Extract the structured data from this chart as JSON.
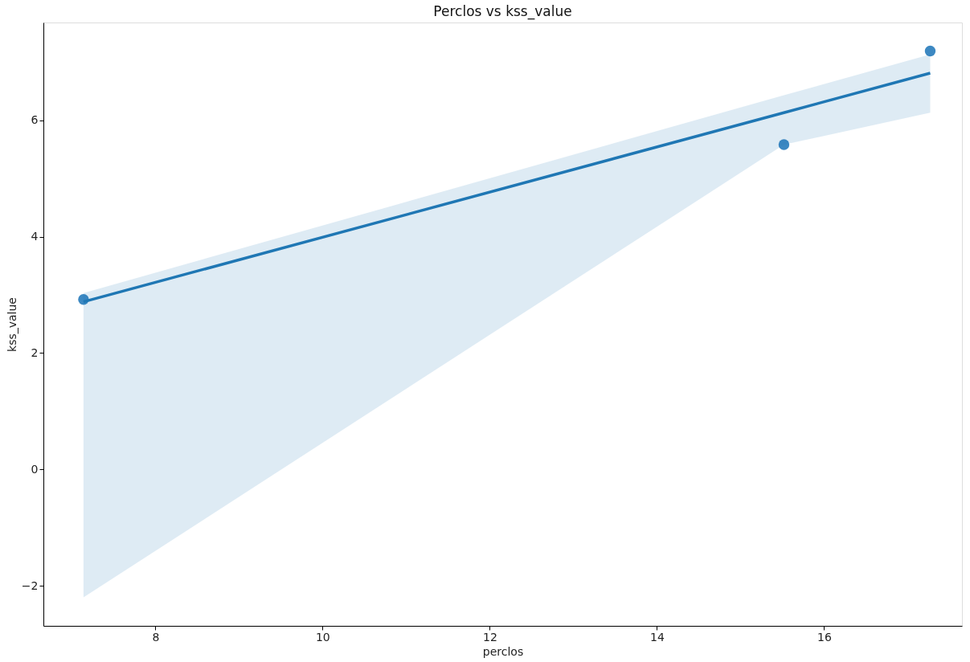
{
  "chart_data": {
    "type": "scatter",
    "title": "Perclos vs kss_value",
    "xlabel": "perclos",
    "ylabel": "kss_value",
    "xlim": [
      6.66,
      17.65
    ],
    "xticks": [
      8,
      10,
      12,
      14,
      16
    ],
    "ylim": [
      -2.69,
      7.68
    ],
    "yticks": [
      -2,
      0,
      2,
      4,
      6
    ],
    "grid": false,
    "series": [
      {
        "marker": "circle",
        "color": "#3c88c2",
        "x": [
          7.14,
          15.52,
          17.27
        ],
        "values": [
          2.92,
          5.58,
          7.19
        ]
      },
      {
        "type": "line",
        "marker": "none",
        "color": "#1f77b4",
        "x": [
          7.14,
          15.52,
          17.27
        ],
        "values": [
          2.88,
          6.13,
          6.81
        ],
        "lower": [
          -2.2,
          5.58,
          6.13
        ],
        "upper": [
          3.03,
          6.43,
          7.13
        ]
      }
    ]
  }
}
